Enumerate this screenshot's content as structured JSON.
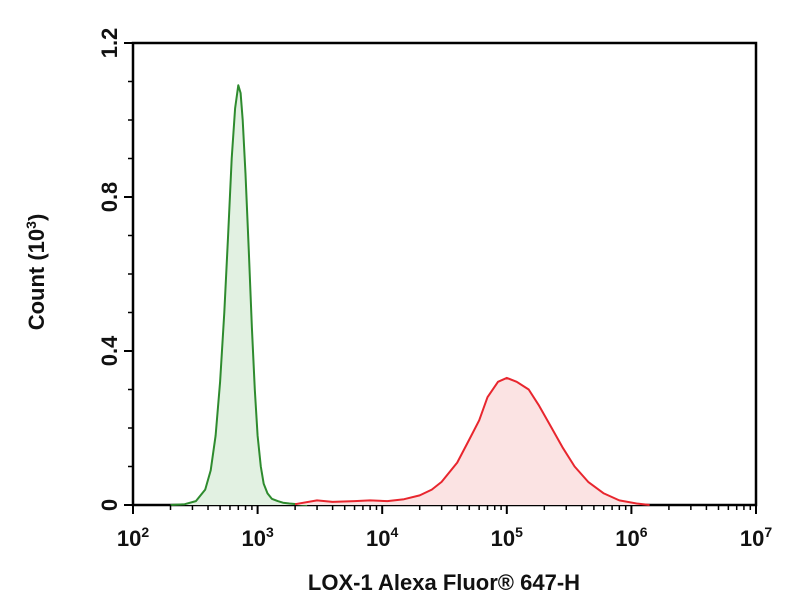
{
  "chart_data": {
    "type": "area",
    "title": "",
    "xlabel": "LOX-1 Alexa Fluor® 647-H",
    "ylabel": "Count (10",
    "ylabel_exponent": "3",
    "ylabel_suffix": ")",
    "x_scale": "log",
    "xlim": [
      100,
      10000000
    ],
    "ylim": [
      0,
      1.2
    ],
    "x_ticks": [
      {
        "base": "10",
        "exp": "2"
      },
      {
        "base": "10",
        "exp": "3"
      },
      {
        "base": "10",
        "exp": "4"
      },
      {
        "base": "10",
        "exp": "5"
      },
      {
        "base": "10",
        "exp": "6"
      },
      {
        "base": "10",
        "exp": "7"
      }
    ],
    "y_ticks": [
      "0",
      "0.4",
      "0.8",
      "1.2"
    ],
    "y_tick_values": [
      0,
      0.4,
      0.8,
      1.2
    ],
    "grid": false,
    "legend": "none",
    "series": [
      {
        "color": "#2e8b2e",
        "fill": "#e2f1e2",
        "x": [
          200,
          260,
          320,
          380,
          420,
          460,
          500,
          540,
          580,
          620,
          660,
          700,
          730,
          760,
          800,
          850,
          900,
          950,
          1000,
          1060,
          1120,
          1200,
          1300,
          1450,
          1600,
          1800,
          2100,
          2500
        ],
        "y": [
          0.0,
          0.002,
          0.01,
          0.04,
          0.09,
          0.18,
          0.32,
          0.5,
          0.7,
          0.9,
          1.03,
          1.09,
          1.07,
          1.0,
          0.86,
          0.66,
          0.46,
          0.3,
          0.18,
          0.1,
          0.055,
          0.03,
          0.016,
          0.01,
          0.006,
          0.004,
          0.002,
          0.0
        ]
      },
      {
        "color": "#e8262e",
        "fill": "#fbe3e3",
        "x": [
          2000,
          3000,
          4000,
          6000,
          8000,
          11000,
          15000,
          20000,
          25000,
          30000,
          40000,
          50000,
          60000,
          70000,
          85000,
          100000,
          120000,
          150000,
          180000,
          220000,
          280000,
          350000,
          450000,
          600000,
          800000,
          1100000,
          1400000
        ],
        "y": [
          0.002,
          0.012,
          0.008,
          0.01,
          0.012,
          0.01,
          0.015,
          0.025,
          0.04,
          0.06,
          0.11,
          0.17,
          0.22,
          0.28,
          0.32,
          0.33,
          0.32,
          0.3,
          0.26,
          0.21,
          0.15,
          0.1,
          0.06,
          0.03,
          0.012,
          0.004,
          0.0
        ]
      }
    ]
  }
}
